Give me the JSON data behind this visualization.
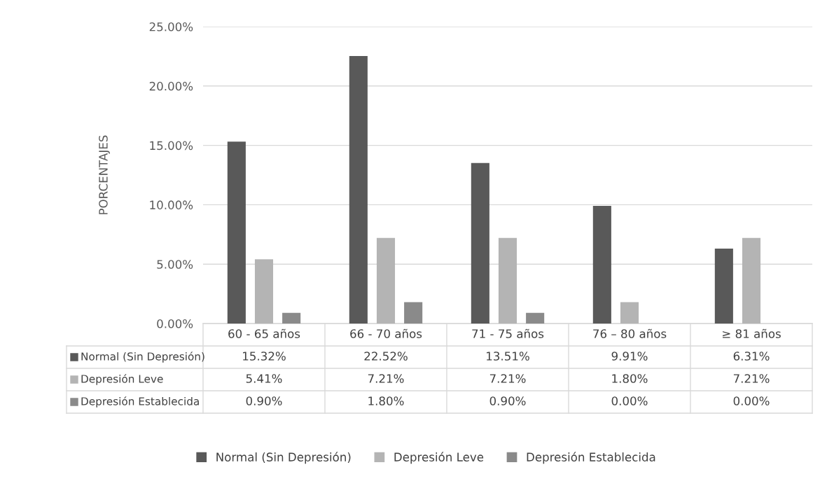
{
  "chart_data": {
    "type": "bar",
    "ylabel": "PORCENTAJES",
    "categories": [
      "60 - 65 años",
      "66 - 70 años",
      "71 - 75 años",
      "76 – 80 años",
      "≥ 81 años"
    ],
    "series": [
      {
        "name": "Normal (Sin Depresión)",
        "color": "#595959",
        "values": [
          15.32,
          22.52,
          13.51,
          9.91,
          6.31
        ],
        "value_labels": [
          "15.32%",
          "22.52%",
          "13.51%",
          "9.91%",
          "6.31%"
        ]
      },
      {
        "name": "Depresión Leve",
        "color": "#b4b4b4",
        "values": [
          5.41,
          7.21,
          7.21,
          1.8,
          7.21
        ],
        "value_labels": [
          "5.41%",
          "7.21%",
          "7.21%",
          "1.80%",
          "7.21%"
        ]
      },
      {
        "name": "Depresión Establecida",
        "color": "#8a8a8a",
        "values": [
          0.9,
          1.8,
          0.9,
          0.0,
          0.0
        ],
        "value_labels": [
          "0.90%",
          "1.80%",
          "0.90%",
          "0.00%",
          "0.00%"
        ]
      }
    ],
    "ylim": [
      0,
      25
    ],
    "yticks": [
      {
        "value": 0,
        "label": "0.00%"
      },
      {
        "value": 5,
        "label": "5.00%"
      },
      {
        "value": 10,
        "label": "10.00%"
      },
      {
        "value": 15,
        "label": "15.00%"
      },
      {
        "value": 20,
        "label": "20.00%"
      },
      {
        "value": 25,
        "label": "25.00%"
      }
    ],
    "grid": "y",
    "legend": "bottom"
  }
}
